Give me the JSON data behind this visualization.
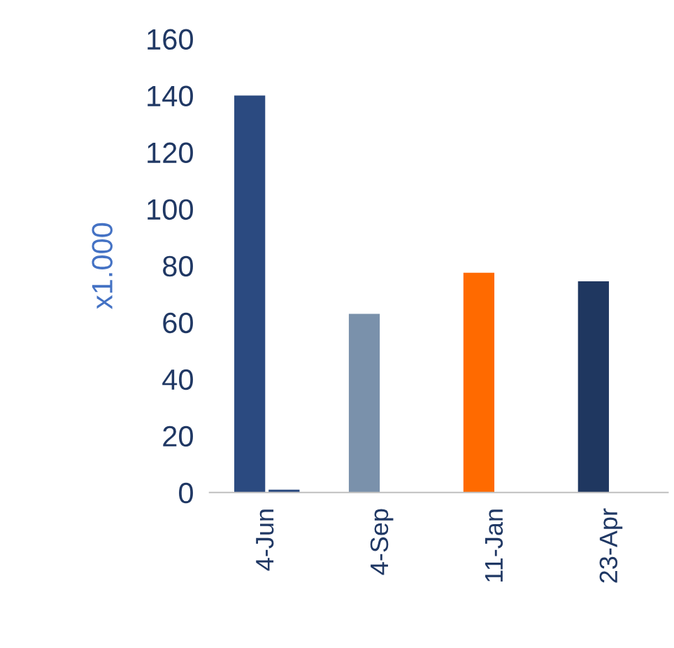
{
  "chart_data": {
    "type": "bar",
    "ylabel": "x1.000",
    "categories": [
      "4-Jun",
      "4-Sep",
      "11-Jan",
      "23-Apr"
    ],
    "series": [
      {
        "colors": [
          "#2b4a80",
          "#7a91ab",
          "#ff6a00",
          "#1f3760"
        ],
        "values": [
          140,
          63,
          77.5,
          74.5
        ]
      },
      {
        "colors": [
          "#2b4a80",
          "#2b4a80",
          "#2b4a80",
          "#2b4a80"
        ],
        "values": [
          1,
          null,
          null,
          null
        ]
      }
    ],
    "ylim": [
      0,
      160
    ],
    "yticks": [
      0,
      20,
      40,
      60,
      80,
      100,
      120,
      140,
      160
    ],
    "grid": false,
    "legend": false
  }
}
